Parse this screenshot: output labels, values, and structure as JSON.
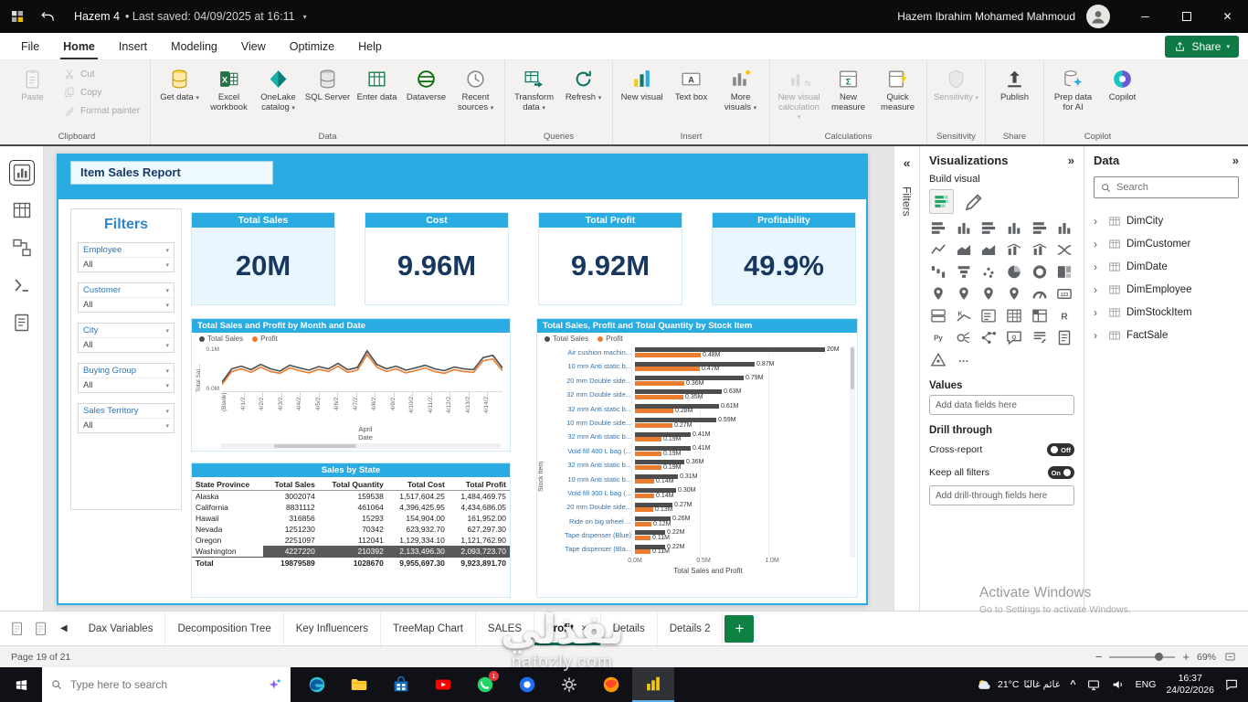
{
  "titlebar": {
    "title": "Hazem 4",
    "last_saved": "• Last saved: 04/09/2025 at 16:11",
    "user": "Hazem Ibrahim Mohamed Mahmoud"
  },
  "menu": {
    "items": [
      "File",
      "Home",
      "Insert",
      "Modeling",
      "View",
      "Optimize",
      "Help"
    ],
    "active_index": 1,
    "share_label": "Share"
  },
  "ribbon": {
    "clipboard": {
      "label": "Clipboard",
      "paste": "Paste",
      "cut": "Cut",
      "copy": "Copy",
      "format_painter": "Format painter"
    },
    "data": {
      "label": "Data",
      "get_data": "Get data",
      "excel_workbook": "Excel workbook",
      "onelake_catalog": "OneLake catalog",
      "sql_server": "SQL Server",
      "enter_data": "Enter data",
      "dataverse": "Dataverse",
      "recent_sources": "Recent sources"
    },
    "queries": {
      "label": "Queries",
      "transform_data": "Transform data",
      "refresh": "Refresh"
    },
    "insert_group": {
      "label": "Insert",
      "new_visual": "New visual",
      "text_box": "Text box",
      "more_visuals": "More visuals"
    },
    "calculations": {
      "label": "Calculations",
      "new_visual_calculation": "New visual calculation",
      "new_measure": "New measure",
      "quick_measure": "Quick measure"
    },
    "sensitivity_group": {
      "label": "Sensitivity",
      "sensitivity": "Sensitivity"
    },
    "share_group": {
      "label": "Share",
      "publish": "Publish"
    },
    "copilot_group": {
      "label": "Copilot",
      "prep_data": "Prep data for AI",
      "copilot": "Copilot"
    }
  },
  "view_rail": [
    "Report view",
    "Table view",
    "Model view",
    "DAX query view",
    "TMDL view"
  ],
  "filters_strip_label": "Filters",
  "report": {
    "title": "Item Sales Report",
    "filters_pane": {
      "title": "Filters",
      "items": [
        {
          "label": "Employee",
          "value": "All"
        },
        {
          "label": "Customer",
          "value": "All"
        },
        {
          "label": "City",
          "value": "All"
        },
        {
          "label": "Buying Group",
          "value": "All"
        },
        {
          "label": "Sales Territory",
          "value": "All"
        }
      ]
    },
    "kpis": [
      {
        "title": "Total Sales",
        "value": "20M",
        "highlighted": true
      },
      {
        "title": "Cost",
        "value": "9.96M",
        "highlighted": false
      },
      {
        "title": "Total Profit",
        "value": "9.92M",
        "highlighted": false
      },
      {
        "title": "Profitability",
        "value": "49.9%",
        "highlighted": true
      }
    ],
    "line_chart": {
      "type": "line",
      "title": "Total Sales and Profit by Month and Date",
      "legend": [
        {
          "name": "Total Sales",
          "color": "#4d4d4d"
        },
        {
          "name": "Profit",
          "color": "#ec7c30"
        }
      ],
      "y_axis_title": "Total Sal...",
      "y_ticks": [
        "0.1M",
        "0.0M"
      ],
      "y_max": 0.1,
      "x_axis_title": "Date",
      "x_group_label": "April",
      "x_ticks": [
        "(Blank)",
        "4/1/2...",
        "4/2/2...",
        "4/3/2...",
        "4/4/2...",
        "4/5/2...",
        "4/6/2...",
        "4/7/2...",
        "4/8/2...",
        "4/9/2...",
        "4/10/2...",
        "4/11/2...",
        "4/12/2...",
        "4/13/2...",
        "4/14/2..."
      ],
      "series": [
        {
          "name": "Total Sales",
          "color": "#4d4d4d",
          "values": [
            0.02,
            0.05,
            0.056,
            0.048,
            0.06,
            0.05,
            0.045,
            0.058,
            0.052,
            0.047,
            0.055,
            0.05,
            0.062,
            0.048,
            0.053,
            0.09,
            0.06,
            0.05,
            0.056,
            0.047,
            0.052,
            0.058,
            0.05,
            0.046,
            0.054,
            0.05,
            0.048,
            0.075,
            0.08,
            0.052
          ]
        },
        {
          "name": "Profit",
          "color": "#ec7c30",
          "values": [
            0.015,
            0.044,
            0.05,
            0.042,
            0.054,
            0.044,
            0.04,
            0.052,
            0.046,
            0.041,
            0.049,
            0.044,
            0.056,
            0.042,
            0.047,
            0.082,
            0.054,
            0.044,
            0.05,
            0.041,
            0.046,
            0.052,
            0.044,
            0.04,
            0.048,
            0.044,
            0.042,
            0.068,
            0.072,
            0.046
          ]
        }
      ]
    },
    "state_table": {
      "type": "table",
      "title": "Sales by State",
      "columns": [
        "State Province",
        "Total Sales",
        "Total Quantity",
        "Total Cost",
        "Total Profit"
      ],
      "rows": [
        [
          "Alaska",
          "3002074",
          "159538",
          "1,517,604.25",
          "1,484,469.75"
        ],
        [
          "California",
          "8831112",
          "461064",
          "4,396,425.95",
          "4,434,686.05"
        ],
        [
          "Hawaii",
          "316856",
          "15293",
          "154,904.00",
          "161,952.00"
        ],
        [
          "Nevada",
          "1251230",
          "70342",
          "623,932.70",
          "627,297.30"
        ],
        [
          "Oregon",
          "2251097",
          "112041",
          "1,129,334.10",
          "1,121,762.90"
        ],
        [
          "Washington",
          "4227220",
          "210392",
          "2,133,496.30",
          "2,093,723.70"
        ]
      ],
      "total_row": [
        "Total",
        "19879589",
        "1028670",
        "9,955,697.30",
        "9,923,891.70"
      ],
      "selected_row_index": 5
    },
    "bar_chart": {
      "type": "bar",
      "title": "Total Sales, Profit and Total Quantity by Stock Item",
      "legend": [
        {
          "name": "Total Sales",
          "color": "#4d4d4d"
        },
        {
          "name": "Profit",
          "color": "#ec7c30"
        }
      ],
      "y_axis_title": "Stock Item",
      "x_axis_title": "Total Sales and Profit",
      "x_ticks": [
        "0.0M",
        "0.5M",
        "1.0M"
      ],
      "items": [
        {
          "name": "Air cushion machin...",
          "sales": 20,
          "sales_label": "20M",
          "profit": 0.48,
          "profit_label": "0.48M"
        },
        {
          "name": "10 mm Anti static b...",
          "sales": 0.87,
          "sales_label": "0.87M",
          "profit": 0.47,
          "profit_label": "0.47M"
        },
        {
          "name": "20 mm Double side...",
          "sales": 0.79,
          "sales_label": "0.79M",
          "profit": 0.36,
          "profit_label": "0.36M"
        },
        {
          "name": "32 mm Double side...",
          "sales": 0.63,
          "sales_label": "0.63M",
          "profit": 0.35,
          "profit_label": "0.35M"
        },
        {
          "name": "32 mm Anti static b...",
          "sales": 0.61,
          "sales_label": "0.61M",
          "profit": 0.28,
          "profit_label": "0.28M"
        },
        {
          "name": "10 mm Double side...",
          "sales": 0.59,
          "sales_label": "0.59M",
          "profit": 0.27,
          "profit_label": "0.27M"
        },
        {
          "name": "32 mm Anti static b...",
          "sales": 0.41,
          "sales_label": "0.41M",
          "profit": 0.19,
          "profit_label": "0.19M"
        },
        {
          "name": "Void fill 400 L bag (...",
          "sales": 0.41,
          "sales_label": "0.41M",
          "profit": 0.19,
          "profit_label": "0.19M"
        },
        {
          "name": "32 mm Anti static b...",
          "sales": 0.36,
          "sales_label": "0.36M",
          "profit": 0.19,
          "profit_label": "0.19M"
        },
        {
          "name": "10 mm Anti static b...",
          "sales": 0.31,
          "sales_label": "0.31M",
          "profit": 0.14,
          "profit_label": "0.14M"
        },
        {
          "name": "Void fill 300 L bag (...",
          "sales": 0.3,
          "sales_label": "0.30M",
          "profit": 0.14,
          "profit_label": "0.14M"
        },
        {
          "name": "20 mm Double side...",
          "sales": 0.27,
          "sales_label": "0.27M",
          "profit": 0.13,
          "profit_label": "0.13M"
        },
        {
          "name": "Ride on big wheel ...",
          "sales": 0.26,
          "sales_label": "0.26M",
          "profit": 0.12,
          "profit_label": "0.12M"
        },
        {
          "name": "Tape dispenser (Blue)",
          "sales": 0.22,
          "sales_label": "0.22M",
          "profit": 0.11,
          "profit_label": "0.11M"
        },
        {
          "name": "Tape dispenser (Bla...",
          "sales": 0.22,
          "sales_label": "0.22M",
          "profit": 0.11,
          "profit_label": "0.11M"
        }
      ]
    }
  },
  "visualizations": {
    "title": "Visualizations",
    "build_visual_label": "Build visual",
    "selected_visual": "Stacked bar chart",
    "visual_types": [
      "Stacked bar chart",
      "Stacked column chart",
      "Clustered bar chart",
      "Clustered column chart",
      "100% Stacked bar chart",
      "100% Stacked column chart",
      "Line chart",
      "Area chart",
      "Stacked area chart",
      "Line and stacked column chart",
      "Line and clustered column chart",
      "Ribbon chart",
      "Waterfall chart",
      "Funnel",
      "Scatter chart",
      "Pie chart",
      "Donut chart",
      "Treemap",
      "Map",
      "Filled map",
      "Shape map",
      "Azure map",
      "Gauge",
      "Card",
      "Multi-row card",
      "KPI",
      "Slicer",
      "Table",
      "Matrix",
      "R script visual",
      "Python visual",
      "Key influencers",
      "Decomposition tree",
      "Q&A",
      "Smart narrative",
      "Paginated report",
      "Power Apps for Power BI"
    ],
    "more_visuals_label": "…",
    "values_label": "Values",
    "values_placeholder": "Add data fields here",
    "drill_through_label": "Drill through",
    "cross_report_label": "Cross-report",
    "cross_report_state": "Off",
    "keep_all_filters_label": "Keep all filters",
    "keep_all_filters_state": "On",
    "drill_placeholder": "Add drill-through fields here"
  },
  "data_panel": {
    "title": "Data",
    "search_placeholder": "Search",
    "tables": [
      "DimCity",
      "DimCustomer",
      "DimDate",
      "DimEmployee",
      "DimStockItem",
      "FactSale"
    ]
  },
  "pages": {
    "tabs": [
      "Dax Variables",
      "Decomposition Tree",
      "Key Influencers",
      "TreeMap Chart",
      "SALES",
      "Profit",
      "Details",
      "Details 2"
    ],
    "active": "Profit"
  },
  "statusbar": {
    "page_info": "Page 19 of 21",
    "zoom_percent": "69%"
  },
  "taskbar": {
    "search_placeholder": "Type here to search",
    "apps": [
      "edge",
      "file-explorer",
      "store",
      "youtube",
      "whatsapp",
      "photos",
      "settings",
      "firefox",
      "power-bi"
    ],
    "active_app": "power-bi",
    "whatsapp_badge": "1",
    "weather_temp": "21°C",
    "weather_desc": "غائم غالبًا",
    "language": "ENG",
    "time": "16:37",
    "date": "24/02/2026"
  },
  "watermark": {
    "activate_line1": "Activate Windows",
    "activate_line2": "Go to Settings to activate Windows.",
    "site_name": "نفذلي",
    "site_domain": "nafozly.com"
  }
}
